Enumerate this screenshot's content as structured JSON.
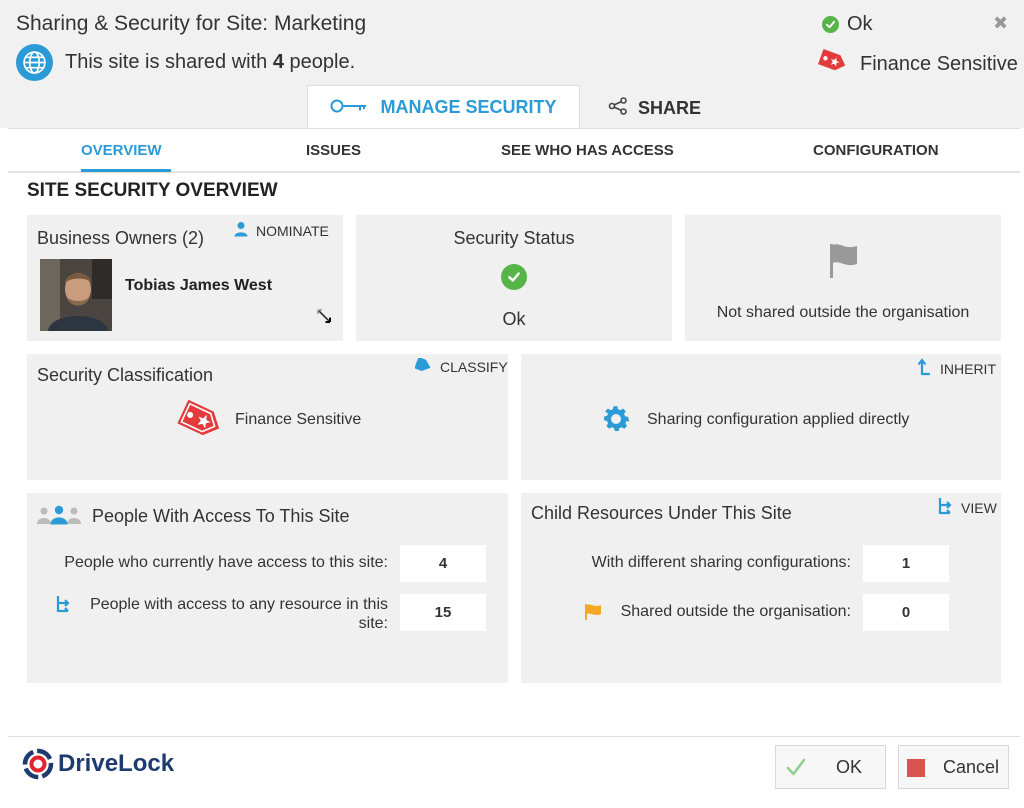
{
  "header": {
    "title": "Sharing & Security for Site: Marketing",
    "status": "Ok",
    "shared_prefix": "This site is shared with ",
    "shared_count": "4",
    "shared_suffix": " people.",
    "classification": "Finance Sensitive",
    "close_icon": "close-icon"
  },
  "tabs": [
    {
      "label": "MANAGE SECURITY",
      "icon": "key-icon",
      "active": true
    },
    {
      "label": "SHARE",
      "icon": "share-icon",
      "active": false
    }
  ],
  "subnav": [
    {
      "label": "OVERVIEW",
      "active": true
    },
    {
      "label": "ISSUES"
    },
    {
      "label": "SEE WHO HAS ACCESS"
    },
    {
      "label": "CONFIGURATION"
    }
  ],
  "section_title": "SITE SECURITY OVERVIEW",
  "owners_card": {
    "title": "Business Owners (2)",
    "action": "NOMINATE",
    "owner_name": "Tobias James West"
  },
  "status_card": {
    "title": "Security Status",
    "value": "Ok"
  },
  "external_card": {
    "text": "Not shared outside the organisation"
  },
  "classification_card": {
    "title": "Security Classification",
    "action": "CLASSIFY",
    "value": "Finance Sensitive"
  },
  "inherit_card": {
    "action": "INHERIT",
    "text": "Sharing configuration applied directly"
  },
  "people_card": {
    "title": "People With Access To This Site",
    "rows": [
      {
        "label": "People who currently have access to this site:",
        "value": "4"
      },
      {
        "label_line1": "People with access to any resource in this",
        "label_line2": "site:",
        "value": "15"
      }
    ]
  },
  "child_card": {
    "title": "Child Resources Under This Site",
    "action": "VIEW",
    "rows": [
      {
        "label": "With different sharing configurations:",
        "value": "1"
      },
      {
        "label": "Shared outside the organisation:",
        "value": "0"
      }
    ]
  },
  "footer": {
    "logo": "DriveLock",
    "ok_label": "OK",
    "cancel_label": "Cancel"
  },
  "colors": {
    "accent": "#2b9bd8",
    "ok_green": "#57b449",
    "danger_red": "#d9534f",
    "flag_orange": "#f5a623"
  }
}
